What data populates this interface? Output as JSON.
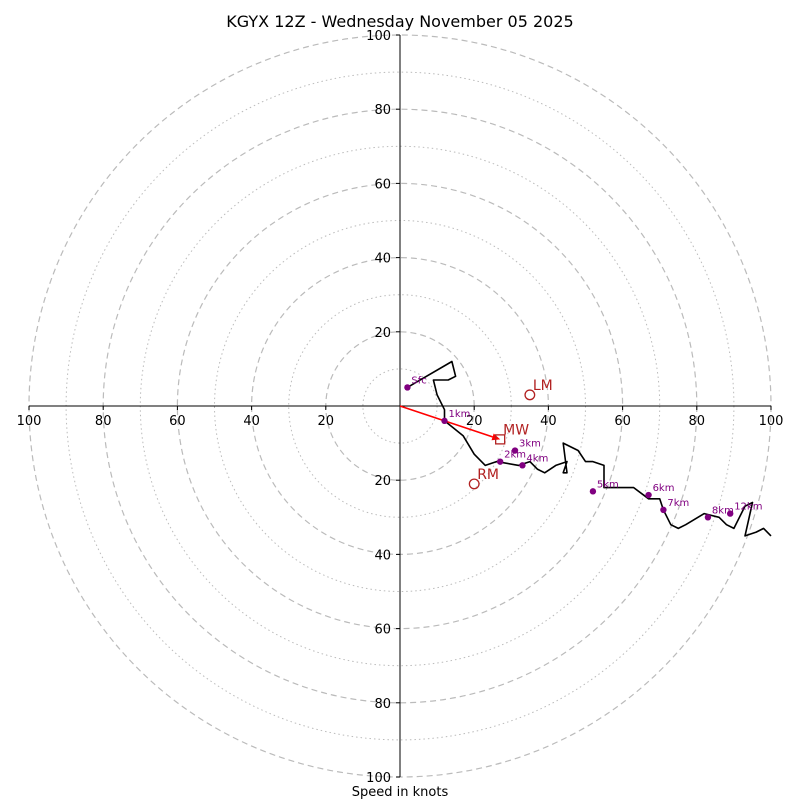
{
  "chart_data": {
    "type": "hodograph",
    "title": "KGYX 12Z - Wednesday November 05 2025",
    "xlabel": "Speed in knots",
    "ring_step": 10,
    "labeled_rings": [
      20,
      40,
      60,
      80,
      100
    ],
    "axis_range": [
      -100,
      100
    ],
    "tick_labels": [
      "100",
      "80",
      "60",
      "40",
      "20",
      "20",
      "40",
      "60",
      "80",
      "100"
    ],
    "tick_values": [
      -100,
      -80,
      -60,
      -40,
      -20,
      20,
      40,
      60,
      80,
      100
    ],
    "hodograph_trace": {
      "u": [
        2,
        14,
        15,
        13,
        9,
        10,
        12,
        12,
        17,
        20,
        23,
        26,
        32,
        35,
        37,
        39,
        42,
        45,
        44,
        45,
        44,
        48,
        50,
        52,
        55,
        55,
        57,
        63,
        67,
        70,
        71,
        73,
        75,
        77,
        82,
        86,
        88,
        90,
        93,
        95,
        93,
        96,
        98,
        100
      ],
      "v": [
        -5,
        -12,
        -8,
        -7,
        -7,
        -3,
        1,
        4,
        8,
        13,
        16,
        15,
        16,
        15,
        17,
        18,
        16,
        15,
        18,
        18,
        10,
        12,
        15,
        15,
        16,
        22,
        22,
        22,
        25,
        25,
        28,
        32,
        33,
        32,
        29,
        30,
        32,
        33,
        27,
        26,
        35,
        34,
        33,
        35
      ]
    },
    "height_points": [
      {
        "label": "Sfc",
        "u": 2,
        "v": -5
      },
      {
        "label": "1km",
        "u": 12,
        "v": 4
      },
      {
        "label": "2km",
        "u": 27,
        "v": 15
      },
      {
        "label": "3km",
        "u": 31,
        "v": 12
      },
      {
        "label": "4km",
        "u": 33,
        "v": 16
      },
      {
        "label": "5km",
        "u": 52,
        "v": 23
      },
      {
        "label": "6km",
        "u": 67,
        "v": 24
      },
      {
        "label": "7km",
        "u": 71,
        "v": 28
      },
      {
        "label": "8km",
        "u": 83,
        "v": 30
      },
      {
        "label": "12km",
        "u": 89,
        "v": 29
      }
    ],
    "storm_motion": [
      {
        "label": "LM",
        "u": 35,
        "v": -3,
        "marker": "circle"
      },
      {
        "label": "MW",
        "u": 27,
        "v": 9,
        "marker": "square"
      },
      {
        "label": "RM",
        "u": 20,
        "v": 21,
        "marker": "circle"
      }
    ],
    "shear_vector": {
      "from": [
        0,
        0
      ],
      "to": [
        27,
        9
      ],
      "color": "#ff0000"
    },
    "colors": {
      "trace": "#000000",
      "points": "#800080",
      "motion": "#b22222",
      "rings": "#bbbbbb"
    }
  }
}
